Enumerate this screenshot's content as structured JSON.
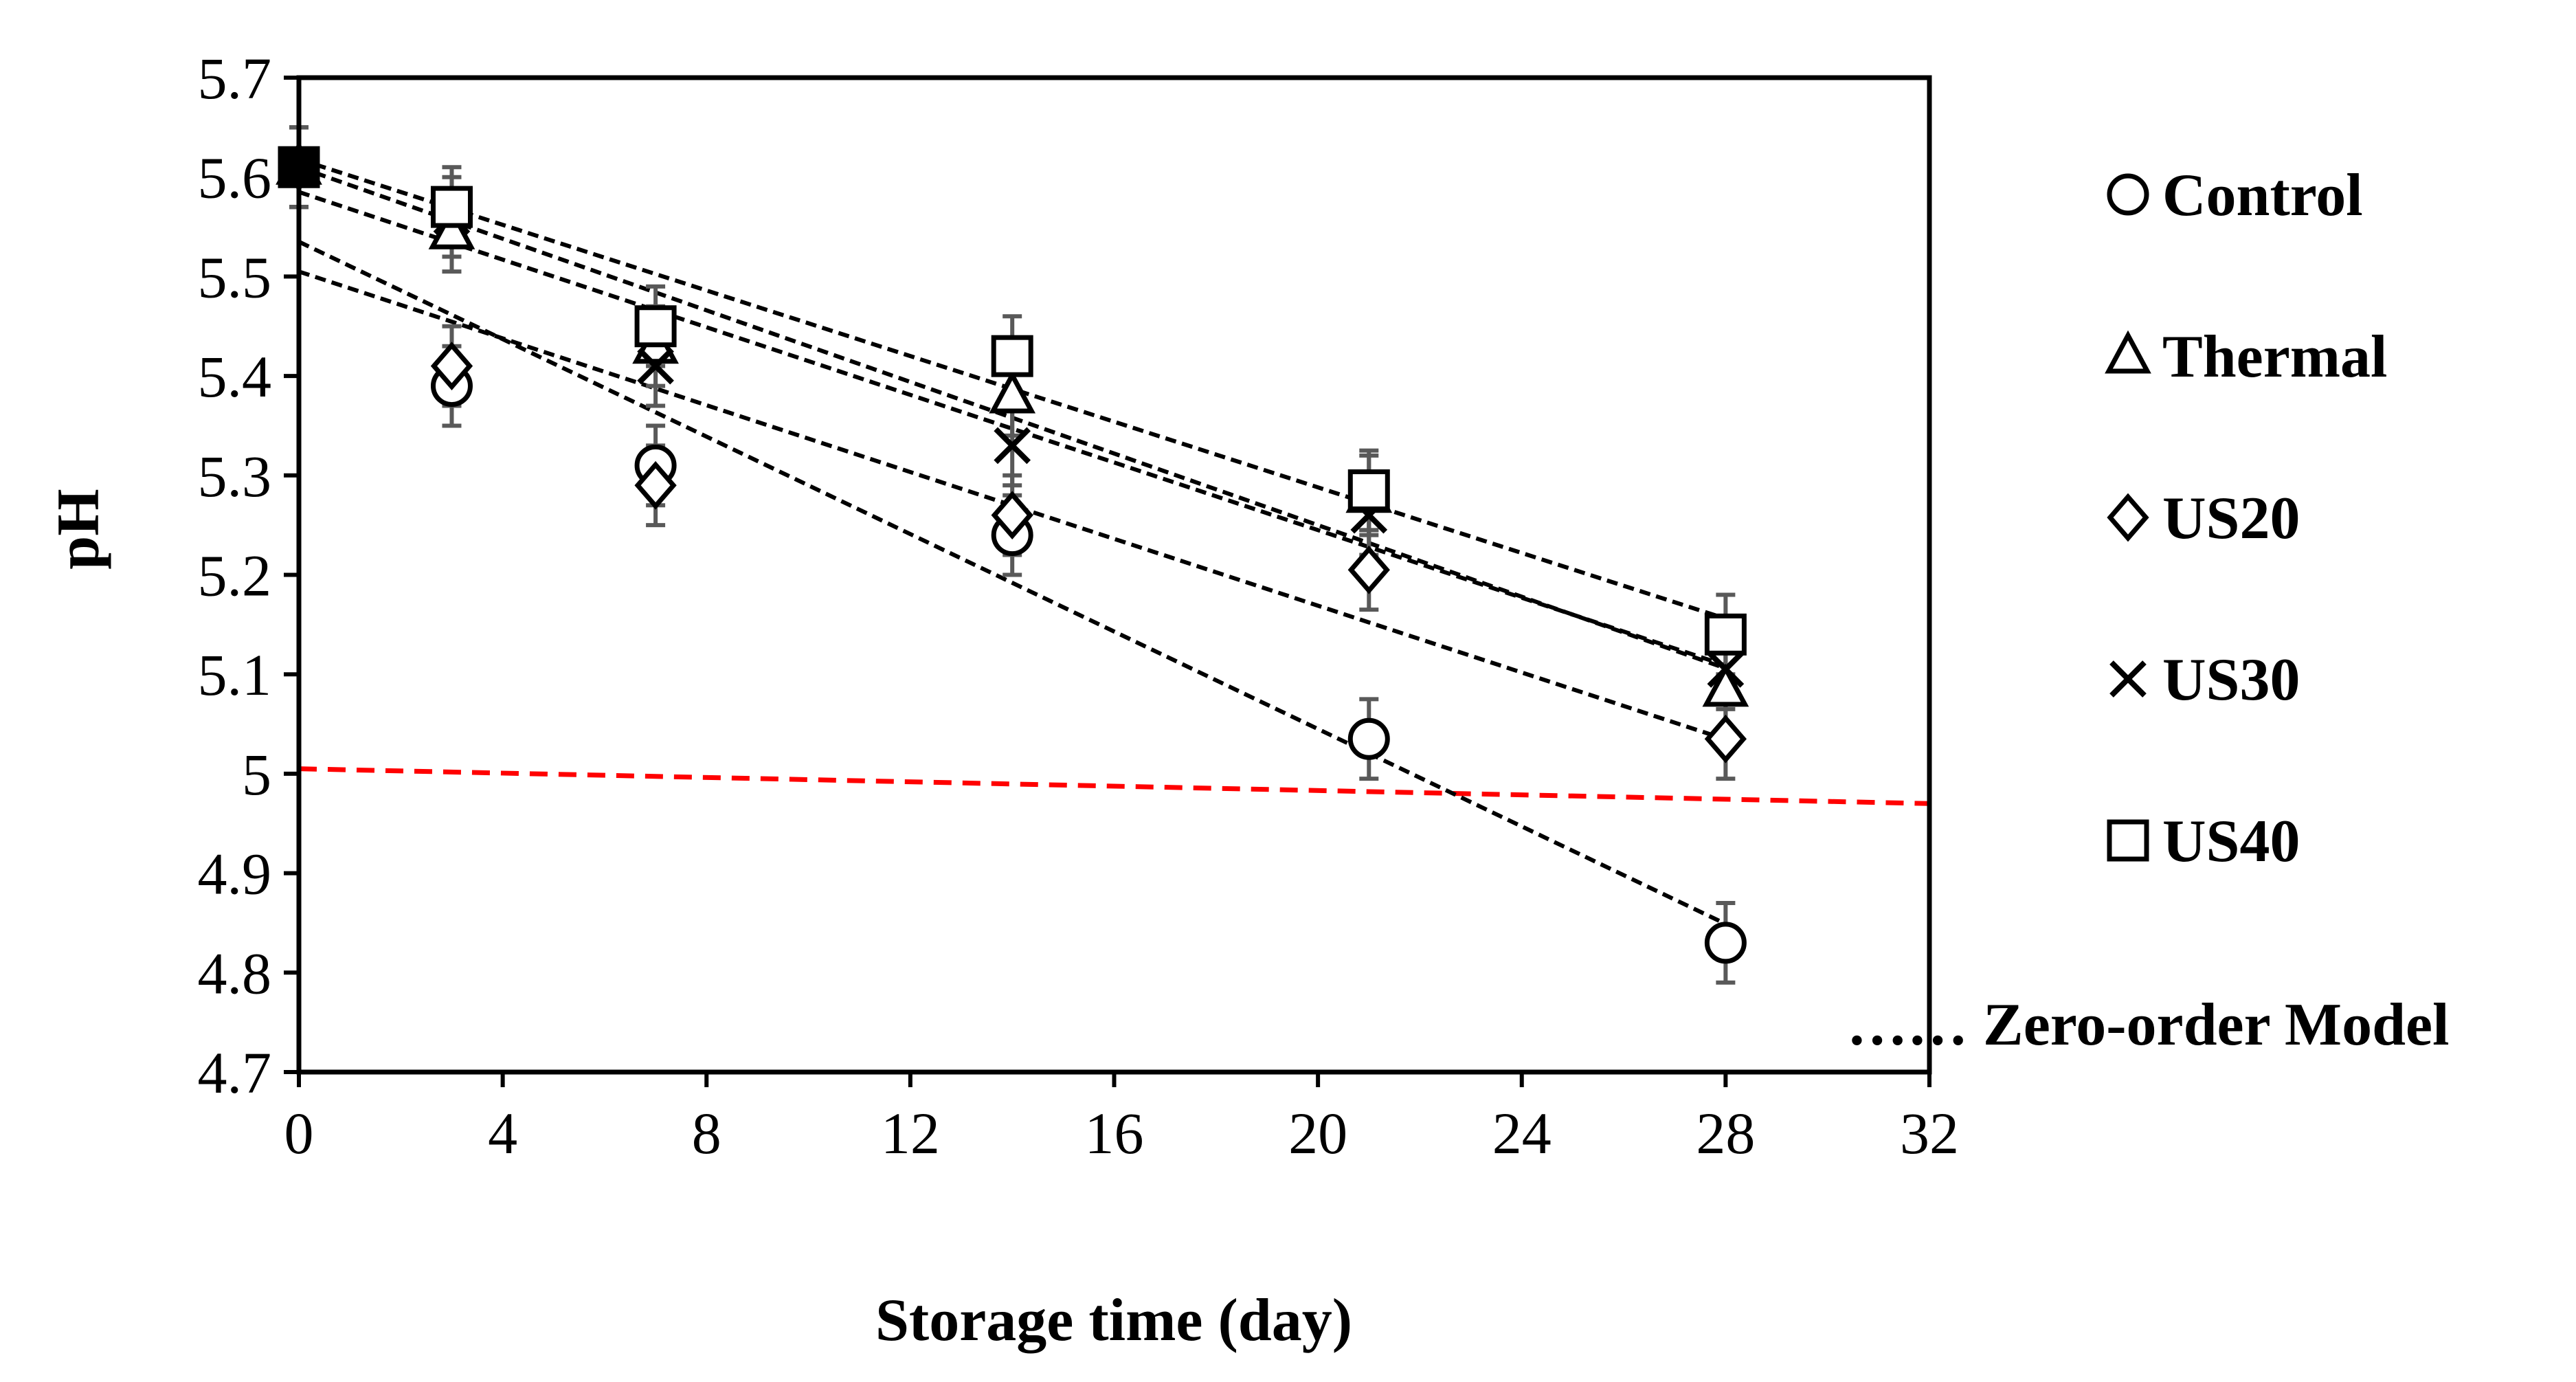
{
  "chart_data": {
    "type": "scatter",
    "title": "",
    "xlabel": "Storage time (day)",
    "ylabel": "pH",
    "xlim": [
      0,
      32
    ],
    "ylim": [
      4.7,
      5.7
    ],
    "xticks": [
      0,
      4,
      8,
      12,
      16,
      20,
      24,
      28,
      32
    ],
    "yticks": [
      4.7,
      4.8,
      4.9,
      5,
      5.1,
      5.2,
      5.3,
      5.4,
      5.5,
      5.6,
      5.7
    ],
    "ytick_labels": [
      "4.7",
      "4.8",
      "4.9",
      "5",
      "5.1",
      "5.2",
      "5.3",
      "5.4",
      "5.5",
      "5.6",
      "5.7"
    ],
    "grid": false,
    "legend_position": "right",
    "series": [
      {
        "name": "Control",
        "marker": "circle",
        "x": [
          0,
          3,
          7,
          14,
          21,
          28
        ],
        "y": [
          5.61,
          5.39,
          5.31,
          5.24,
          5.035,
          4.83
        ],
        "error": [
          0.04,
          0.04,
          0.04,
          0.04,
          0.04,
          0.04
        ],
        "fit": {
          "intercept": 5.535,
          "slope": -0.0245
        }
      },
      {
        "name": "Thermal",
        "marker": "triangle",
        "x": [
          0,
          3,
          7,
          14,
          21,
          28
        ],
        "y": [
          5.61,
          5.545,
          5.43,
          5.38,
          5.28,
          5.085
        ],
        "error": [
          0.04,
          0.04,
          0.04,
          0.04,
          0.04,
          0.04
        ],
        "fit": {
          "intercept": 5.61,
          "slope": -0.018
        }
      },
      {
        "name": "US20",
        "marker": "diamond",
        "x": [
          0,
          3,
          7,
          14,
          21,
          28
        ],
        "y": [
          5.61,
          5.41,
          5.29,
          5.26,
          5.205,
          5.035
        ],
        "error": [
          0.04,
          0.04,
          0.04,
          0.04,
          0.04,
          0.04
        ],
        "fit": {
          "intercept": 5.505,
          "slope": -0.0168
        }
      },
      {
        "name": "US30",
        "marker": "cross",
        "x": [
          0,
          3,
          7,
          14,
          21,
          28
        ],
        "y": [
          5.61,
          5.56,
          5.41,
          5.33,
          5.26,
          5.105
        ],
        "error": [
          0.04,
          0.04,
          0.04,
          0.04,
          0.04,
          0.04
        ],
        "fit": {
          "intercept": 5.585,
          "slope": -0.017
        }
      },
      {
        "name": "US40",
        "marker": "square",
        "x": [
          0,
          3,
          7,
          14,
          21,
          28
        ],
        "y": [
          5.61,
          5.57,
          5.45,
          5.42,
          5.285,
          5.14
        ],
        "error": [
          0.04,
          0.04,
          0.04,
          0.04,
          0.04,
          0.04
        ],
        "fit": {
          "intercept": 5.618,
          "slope": -0.0165
        }
      }
    ],
    "reference_line": {
      "x": [
        0,
        32
      ],
      "y": [
        5.005,
        4.97
      ],
      "color": "#ff0000"
    },
    "model_legend_label": "…… Zero-order Model",
    "colors": {
      "markers": "#000000",
      "error_bars": "#595959",
      "reference": "#ff0000"
    }
  }
}
